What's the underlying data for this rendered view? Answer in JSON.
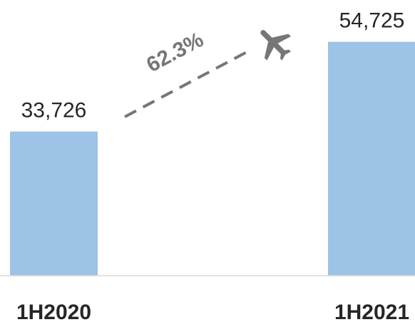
{
  "colors": {
    "bar": "#9DC3E6",
    "baseline": "#D9D9D9",
    "annotation": "#767676",
    "text": "#262626"
  },
  "chart_data": {
    "type": "bar",
    "categories": [
      "1H2020",
      "1H2021"
    ],
    "values": [
      33726,
      54725
    ],
    "value_labels": [
      "33,726",
      "54,725"
    ],
    "ylim": [
      0,
      60000
    ],
    "grid": false,
    "legend": "none",
    "annotation": {
      "text": "62.3%",
      "icon": "airplane-icon",
      "style": "dashed-arrow"
    }
  }
}
